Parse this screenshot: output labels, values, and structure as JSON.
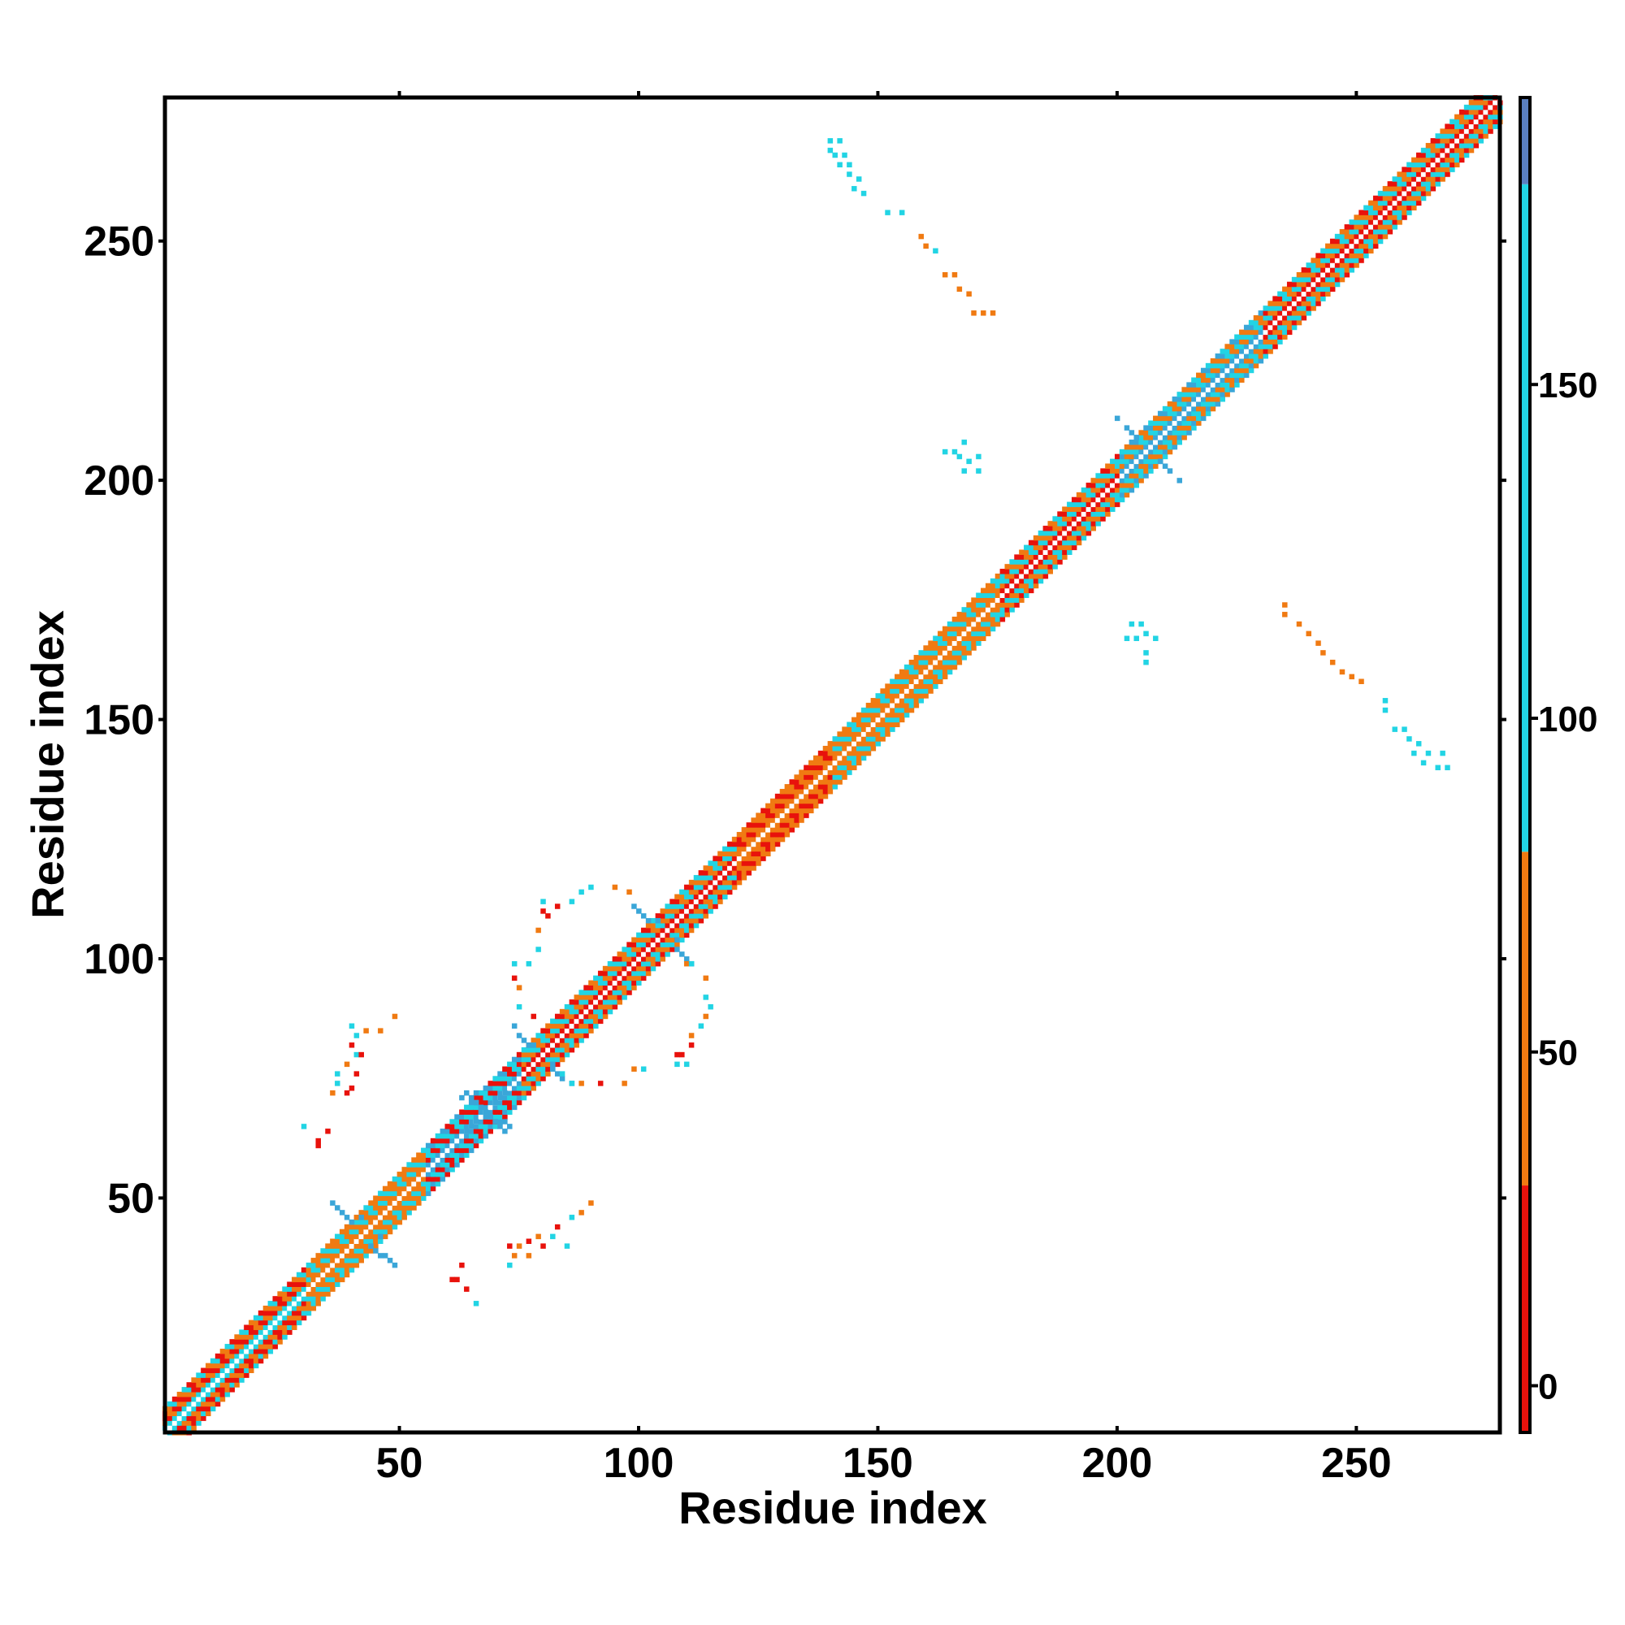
{
  "chart_data": {
    "type": "heatmap",
    "title": "",
    "xlabel": "Residue index",
    "ylabel": "Residue index",
    "xlim": [
      1,
      280
    ],
    "ylim": [
      1,
      280
    ],
    "x_ticks": [
      50,
      100,
      150,
      200,
      250
    ],
    "y_ticks": [
      50,
      100,
      150,
      200,
      250
    ],
    "colorbar": {
      "ticks": [
        0,
        50,
        100,
        150
      ],
      "range": [
        -7,
        193
      ],
      "stops": [
        {
          "from": -7,
          "to": 30,
          "color": "#e8120c"
        },
        {
          "from": 30,
          "to": 80,
          "color": "#f07a12"
        },
        {
          "from": 80,
          "to": 180,
          "color": "#22d4e4"
        },
        {
          "from": 180,
          "to": 193,
          "color": "#5a7fc0"
        }
      ]
    },
    "diagonal_band": {
      "start": 1,
      "end": 280,
      "half_width_residues": 5,
      "segment_colors": [
        {
          "from": 1,
          "to": 30,
          "colors": [
            "#e8120c",
            "#f07a12",
            "#22d4e4"
          ]
        },
        {
          "from": 30,
          "to": 55,
          "colors": [
            "#f07a12",
            "#22d4e4",
            "#f07a12"
          ]
        },
        {
          "from": 55,
          "to": 75,
          "colors": [
            "#e8120c",
            "#22d4e4",
            "#3aa6d8"
          ]
        },
        {
          "from": 75,
          "to": 120,
          "colors": [
            "#f07a12",
            "#22d4e4",
            "#e8120c"
          ]
        },
        {
          "from": 120,
          "to": 140,
          "colors": [
            "#e8120c",
            "#f07a12",
            "#f07a12"
          ]
        },
        {
          "from": 140,
          "to": 175,
          "colors": [
            "#22d4e4",
            "#f07a12",
            "#f07a12"
          ]
        },
        {
          "from": 175,
          "to": 200,
          "colors": [
            "#f07a12",
            "#22d4e4",
            "#e8120c"
          ]
        },
        {
          "from": 200,
          "to": 230,
          "colors": [
            "#22d4e4",
            "#f07a12",
            "#3aa6d8"
          ]
        },
        {
          "from": 230,
          "to": 280,
          "colors": [
            "#22d4e4",
            "#f07a12",
            "#e8120c"
          ]
        }
      ]
    },
    "clusters": [
      {
        "x": 68,
        "y": 68,
        "color": "#3aa6d8",
        "points": [
          [
            64,
            72
          ],
          [
            65,
            71
          ],
          [
            66,
            70
          ],
          [
            67,
            69
          ],
          [
            68,
            68
          ],
          [
            69,
            67
          ],
          [
            70,
            66
          ],
          [
            71,
            65
          ],
          [
            72,
            64
          ],
          [
            64,
            64
          ],
          [
            65,
            65
          ],
          [
            66,
            66
          ],
          [
            70,
            70
          ],
          [
            71,
            71
          ],
          [
            72,
            72
          ],
          [
            66,
            72
          ],
          [
            72,
            66
          ],
          [
            63,
            71
          ],
          [
            73,
            65
          ]
        ]
      },
      {
        "x": 42,
        "y": 42,
        "color": "#3aa6d8",
        "points": [
          [
            37,
            48
          ],
          [
            38,
            47
          ],
          [
            39,
            46
          ],
          [
            40,
            45
          ],
          [
            44,
            40
          ],
          [
            45,
            39
          ],
          [
            46,
            38
          ],
          [
            47,
            38
          ],
          [
            48,
            37
          ],
          [
            36,
            49
          ],
          [
            49,
            36
          ],
          [
            42,
            46
          ],
          [
            46,
            42
          ]
        ]
      },
      {
        "x": 79,
        "y": 79,
        "color": "#3aa6d8",
        "points": [
          [
            75,
            84
          ],
          [
            76,
            83
          ],
          [
            77,
            82
          ],
          [
            82,
            77
          ],
          [
            83,
            76
          ],
          [
            84,
            75
          ],
          [
            74,
            86
          ],
          [
            86,
            74
          ],
          [
            78,
            82
          ],
          [
            82,
            78
          ]
        ]
      },
      {
        "x": 105,
        "y": 105,
        "color": "#3aa6d8",
        "points": [
          [
            100,
            110
          ],
          [
            101,
            109
          ],
          [
            102,
            108
          ],
          [
            108,
            102
          ],
          [
            109,
            101
          ],
          [
            110,
            100
          ],
          [
            99,
            111
          ],
          [
            111,
            99
          ],
          [
            104,
            108
          ],
          [
            108,
            104
          ]
        ]
      },
      {
        "x": 206,
        "y": 206,
        "color": "#3aa6d8",
        "points": [
          [
            202,
            211
          ],
          [
            203,
            210
          ],
          [
            204,
            209
          ],
          [
            209,
            204
          ],
          [
            210,
            203
          ],
          [
            211,
            202
          ],
          [
            200,
            213
          ],
          [
            213,
            200
          ]
        ]
      }
    ],
    "off_diagonal_points": [
      {
        "x": 140,
        "y": 271,
        "v": 105
      },
      {
        "x": 142,
        "y": 271,
        "v": 160
      },
      {
        "x": 140,
        "y": 269,
        "v": 100
      },
      {
        "x": 141,
        "y": 268,
        "v": 110
      },
      {
        "x": 143,
        "y": 268,
        "v": 150
      },
      {
        "x": 142,
        "y": 266,
        "v": 100
      },
      {
        "x": 144,
        "y": 266,
        "v": 100
      },
      {
        "x": 144,
        "y": 264,
        "v": 110
      },
      {
        "x": 146,
        "y": 263,
        "v": 100
      },
      {
        "x": 145,
        "y": 261,
        "v": 160
      },
      {
        "x": 147,
        "y": 260,
        "v": 100
      },
      {
        "x": 152,
        "y": 256,
        "v": 100
      },
      {
        "x": 155,
        "y": 256,
        "v": 100
      },
      {
        "x": 159,
        "y": 251,
        "v": 60
      },
      {
        "x": 160,
        "y": 249,
        "v": 60
      },
      {
        "x": 162,
        "y": 248,
        "v": 100
      },
      {
        "x": 164,
        "y": 243,
        "v": 60
      },
      {
        "x": 166,
        "y": 243,
        "v": 60
      },
      {
        "x": 167,
        "y": 240,
        "v": 70
      },
      {
        "x": 169,
        "y": 239,
        "v": 60
      },
      {
        "x": 170,
        "y": 235,
        "v": 60
      },
      {
        "x": 172,
        "y": 235,
        "v": 60
      },
      {
        "x": 174,
        "y": 235,
        "v": 60
      },
      {
        "x": 164,
        "y": 206,
        "v": 100
      },
      {
        "x": 166,
        "y": 206,
        "v": 160
      },
      {
        "x": 168,
        "y": 208,
        "v": 100
      },
      {
        "x": 167,
        "y": 205,
        "v": 110
      },
      {
        "x": 169,
        "y": 204,
        "v": 160
      },
      {
        "x": 171,
        "y": 205,
        "v": 100
      },
      {
        "x": 168,
        "y": 202,
        "v": 100
      },
      {
        "x": 171,
        "y": 202,
        "v": 110
      },
      {
        "x": 203,
        "y": 170,
        "v": 100
      },
      {
        "x": 205,
        "y": 170,
        "v": 160
      },
      {
        "x": 202,
        "y": 167,
        "v": 100
      },
      {
        "x": 204,
        "y": 167,
        "v": 110
      },
      {
        "x": 206,
        "y": 168,
        "v": 160
      },
      {
        "x": 208,
        "y": 167,
        "v": 100
      },
      {
        "x": 206,
        "y": 164,
        "v": 100
      },
      {
        "x": 206,
        "y": 162,
        "v": 110
      },
      {
        "x": 235,
        "y": 174,
        "v": 60
      },
      {
        "x": 235,
        "y": 172,
        "v": 60
      },
      {
        "x": 238,
        "y": 170,
        "v": 60
      },
      {
        "x": 240,
        "y": 168,
        "v": 70
      },
      {
        "x": 242,
        "y": 166,
        "v": 60
      },
      {
        "x": 243,
        "y": 164,
        "v": 60
      },
      {
        "x": 245,
        "y": 162,
        "v": 60
      },
      {
        "x": 247,
        "y": 160,
        "v": 60
      },
      {
        "x": 249,
        "y": 159,
        "v": 60
      },
      {
        "x": 251,
        "y": 158,
        "v": 60
      },
      {
        "x": 256,
        "y": 154,
        "v": 100
      },
      {
        "x": 256,
        "y": 152,
        "v": 100
      },
      {
        "x": 258,
        "y": 148,
        "v": 100
      },
      {
        "x": 260,
        "y": 148,
        "v": 100
      },
      {
        "x": 261,
        "y": 146,
        "v": 160
      },
      {
        "x": 263,
        "y": 145,
        "v": 110
      },
      {
        "x": 262,
        "y": 143,
        "v": 160
      },
      {
        "x": 265,
        "y": 143,
        "v": 100
      },
      {
        "x": 268,
        "y": 143,
        "v": 100
      },
      {
        "x": 264,
        "y": 141,
        "v": 110
      },
      {
        "x": 267,
        "y": 140,
        "v": 100
      },
      {
        "x": 269,
        "y": 140,
        "v": 100
      },
      {
        "x": 40,
        "y": 86,
        "v": 100
      },
      {
        "x": 43,
        "y": 85,
        "v": 60
      },
      {
        "x": 46,
        "y": 85,
        "v": 60
      },
      {
        "x": 49,
        "y": 88,
        "v": 60
      },
      {
        "x": 41,
        "y": 84,
        "v": 100
      },
      {
        "x": 40,
        "y": 82,
        "v": 20
      },
      {
        "x": 41,
        "y": 80,
        "v": 100
      },
      {
        "x": 42,
        "y": 80,
        "v": 10
      },
      {
        "x": 39,
        "y": 78,
        "v": 60
      },
      {
        "x": 41,
        "y": 76,
        "v": 20
      },
      {
        "x": 37,
        "y": 76,
        "v": 100
      },
      {
        "x": 37,
        "y": 74,
        "v": 100
      },
      {
        "x": 36,
        "y": 72,
        "v": 60
      },
      {
        "x": 39,
        "y": 72,
        "v": 10
      },
      {
        "x": 40,
        "y": 73,
        "v": 20
      },
      {
        "x": 30,
        "y": 65,
        "v": 100
      },
      {
        "x": 33,
        "y": 62,
        "v": 10
      },
      {
        "x": 35,
        "y": 64,
        "v": 20
      },
      {
        "x": 33,
        "y": 61,
        "v": 0
      },
      {
        "x": 63,
        "y": 36,
        "v": 20
      },
      {
        "x": 61,
        "y": 33,
        "v": 0
      },
      {
        "x": 62,
        "y": 33,
        "v": 0
      },
      {
        "x": 64,
        "y": 31,
        "v": 20
      },
      {
        "x": 66,
        "y": 28,
        "v": 100
      },
      {
        "x": 73,
        "y": 40,
        "v": 0
      },
      {
        "x": 74,
        "y": 38,
        "v": 60
      },
      {
        "x": 75,
        "y": 40,
        "v": 60
      },
      {
        "x": 77,
        "y": 41,
        "v": 20
      },
      {
        "x": 79,
        "y": 42,
        "v": 60
      },
      {
        "x": 80,
        "y": 40,
        "v": 20
      },
      {
        "x": 82,
        "y": 42,
        "v": 100
      },
      {
        "x": 83,
        "y": 44,
        "v": 20
      },
      {
        "x": 85,
        "y": 40,
        "v": 100
      },
      {
        "x": 86,
        "y": 46,
        "v": 100
      },
      {
        "x": 88,
        "y": 47,
        "v": 60
      },
      {
        "x": 90,
        "y": 49,
        "v": 60
      },
      {
        "x": 73,
        "y": 36,
        "v": 100
      },
      {
        "x": 77,
        "y": 38,
        "v": 60
      },
      {
        "x": 80,
        "y": 112,
        "v": 100
      },
      {
        "x": 80,
        "y": 110,
        "v": 20
      },
      {
        "x": 81,
        "y": 109,
        "v": 20
      },
      {
        "x": 83,
        "y": 111,
        "v": 20
      },
      {
        "x": 86,
        "y": 112,
        "v": 100
      },
      {
        "x": 88,
        "y": 114,
        "v": 100
      },
      {
        "x": 90,
        "y": 115,
        "v": 100
      },
      {
        "x": 95,
        "y": 115,
        "v": 60
      },
      {
        "x": 98,
        "y": 114,
        "v": 60
      },
      {
        "x": 79,
        "y": 106,
        "v": 60
      },
      {
        "x": 79,
        "y": 102,
        "v": 100
      },
      {
        "x": 74,
        "y": 99,
        "v": 100
      },
      {
        "x": 77,
        "y": 99,
        "v": 100
      },
      {
        "x": 74,
        "y": 96,
        "v": 20
      },
      {
        "x": 75,
        "y": 94,
        "v": 60
      },
      {
        "x": 75,
        "y": 90,
        "v": 100
      },
      {
        "x": 78,
        "y": 88,
        "v": 20
      },
      {
        "x": 110,
        "y": 99,
        "v": 60
      },
      {
        "x": 111,
        "y": 99,
        "v": 100
      },
      {
        "x": 114,
        "y": 96,
        "v": 60
      },
      {
        "x": 114,
        "y": 92,
        "v": 100
      },
      {
        "x": 115,
        "y": 90,
        "v": 100
      },
      {
        "x": 114,
        "y": 88,
        "v": 60
      },
      {
        "x": 113,
        "y": 86,
        "v": 100
      },
      {
        "x": 111,
        "y": 84,
        "v": 60
      },
      {
        "x": 111,
        "y": 82,
        "v": 20
      },
      {
        "x": 108,
        "y": 80,
        "v": 0
      },
      {
        "x": 109,
        "y": 80,
        "v": 0
      },
      {
        "x": 110,
        "y": 78,
        "v": 100
      },
      {
        "x": 108,
        "y": 78,
        "v": 100
      },
      {
        "x": 99,
        "y": 77,
        "v": 60
      },
      {
        "x": 101,
        "y": 77,
        "v": 100
      },
      {
        "x": 97,
        "y": 74,
        "v": 60
      },
      {
        "x": 92,
        "y": 74,
        "v": 20
      },
      {
        "x": 88,
        "y": 74,
        "v": 60
      },
      {
        "x": 86,
        "y": 74,
        "v": 100
      },
      {
        "x": 84,
        "y": 76,
        "v": 100
      }
    ]
  },
  "axes": {
    "x_tick_labels": [
      "50",
      "100",
      "150",
      "200",
      "250"
    ],
    "y_tick_labels": [
      "50",
      "100",
      "150",
      "200",
      "250"
    ],
    "colorbar_tick_labels": [
      "0",
      "50",
      "100",
      "150"
    ]
  },
  "colors": {
    "frame": "#000000",
    "background": "#ffffff"
  }
}
